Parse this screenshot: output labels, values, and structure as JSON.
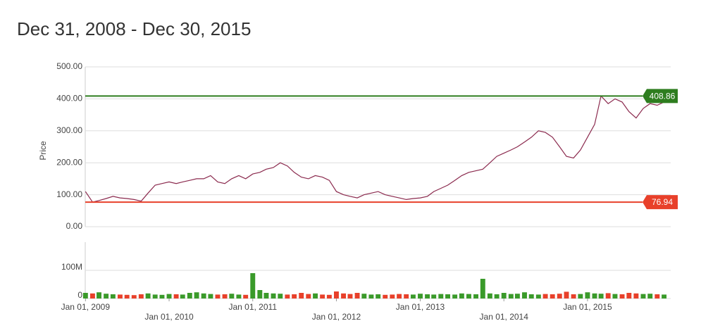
{
  "chart_data": {
    "type": "line",
    "title": "Dec 31, 2008 - Dec 30, 2015",
    "ylabel": "Price",
    "x": [
      "2009-01-01",
      "2009-02-01",
      "2009-03-01",
      "2009-04-01",
      "2009-05-01",
      "2009-06-01",
      "2009-07-01",
      "2009-08-01",
      "2009-09-01",
      "2009-10-01",
      "2009-11-01",
      "2009-12-01",
      "2010-01-01",
      "2010-02-01",
      "2010-03-01",
      "2010-04-01",
      "2010-05-01",
      "2010-06-01",
      "2010-07-01",
      "2010-08-01",
      "2010-09-01",
      "2010-10-01",
      "2010-11-01",
      "2010-12-01",
      "2011-01-01",
      "2011-02-01",
      "2011-03-01",
      "2011-04-01",
      "2011-05-01",
      "2011-06-01",
      "2011-07-01",
      "2011-08-01",
      "2011-09-01",
      "2011-10-01",
      "2011-11-01",
      "2011-12-01",
      "2012-01-01",
      "2012-02-01",
      "2012-03-01",
      "2012-04-01",
      "2012-05-01",
      "2012-06-01",
      "2012-07-01",
      "2012-08-01",
      "2012-09-01",
      "2012-10-01",
      "2012-11-01",
      "2012-12-01",
      "2013-01-01",
      "2013-02-01",
      "2013-03-01",
      "2013-04-01",
      "2013-05-01",
      "2013-06-01",
      "2013-07-01",
      "2013-08-01",
      "2013-09-01",
      "2013-10-01",
      "2013-11-01",
      "2013-12-01",
      "2014-01-01",
      "2014-02-01",
      "2014-03-01",
      "2014-04-01",
      "2014-05-01",
      "2014-06-01",
      "2014-07-01",
      "2014-08-01",
      "2014-09-01",
      "2014-10-01",
      "2014-11-01",
      "2014-12-01",
      "2015-01-01",
      "2015-02-01",
      "2015-03-01",
      "2015-04-01",
      "2015-05-01",
      "2015-06-01",
      "2015-07-01",
      "2015-08-01",
      "2015-09-01",
      "2015-10-01",
      "2015-11-01",
      "2015-12-01"
    ],
    "series": [
      {
        "color": "#8b2a4e",
        "values": [
          110,
          76.94,
          82,
          88,
          95,
          90,
          88,
          85,
          80,
          105,
          130,
          135,
          140,
          135,
          140,
          145,
          150,
          150,
          160,
          140,
          135,
          150,
          160,
          150,
          165,
          170,
          180,
          185,
          200,
          190,
          170,
          155,
          150,
          160,
          155,
          145,
          110,
          100,
          95,
          90,
          100,
          105,
          110,
          100,
          95,
          90,
          85,
          88,
          90,
          95,
          110,
          120,
          130,
          145,
          160,
          170,
          175,
          180,
          200,
          220,
          230,
          240,
          250,
          265,
          280,
          300,
          295,
          280,
          250,
          220,
          215,
          240,
          280,
          320,
          408.86,
          385,
          400,
          390,
          360,
          340,
          370,
          385,
          380,
          390
        ]
      }
    ],
    "xlim": [
      "2008-12-31",
      "2015-12-30"
    ],
    "xticks": [
      {
        "value": "2009-01-01",
        "label": "Jan 01, 2009"
      },
      {
        "value": "2010-01-01",
        "label": "Jan 01, 2010"
      },
      {
        "value": "2011-01-01",
        "label": "Jan 01, 2011"
      },
      {
        "value": "2012-01-01",
        "label": "Jan 01, 2012"
      },
      {
        "value": "2013-01-01",
        "label": "Jan 01, 2013"
      },
      {
        "value": "2014-01-01",
        "label": "Jan 01, 2014"
      },
      {
        "value": "2015-01-01",
        "label": "Jan 01, 2015"
      }
    ],
    "ylim": [
      0,
      500
    ],
    "yticks": [
      {
        "value": 0,
        "label": "0.00"
      },
      {
        "value": 100,
        "label": "100.00"
      },
      {
        "value": 200,
        "label": "200.00"
      },
      {
        "value": 300,
        "label": "300.00"
      },
      {
        "value": 400,
        "label": "400.00"
      },
      {
        "value": 500,
        "label": "500.00"
      }
    ],
    "grid": true,
    "max_line": {
      "value": 408.86,
      "color": "#2e7d1f"
    },
    "min_line": {
      "value": 76.94,
      "color": "#e8402a"
    },
    "volume": {
      "up_color": "#3a9a2a",
      "down_color": "#e8402a",
      "ylim": [
        0,
        200000000
      ],
      "yticks": [
        {
          "value": 0,
          "label": "0"
        },
        {
          "value": 100000000,
          "label": "100M"
        }
      ],
      "values": [
        20000000,
        18000000,
        22000000,
        17000000,
        15000000,
        14000000,
        13000000,
        12000000,
        15000000,
        18000000,
        14000000,
        13000000,
        16000000,
        15000000,
        14000000,
        20000000,
        22000000,
        18000000,
        16000000,
        14000000,
        15000000,
        17000000,
        14000000,
        13000000,
        90000000,
        30000000,
        20000000,
        18000000,
        17000000,
        14000000,
        15000000,
        20000000,
        16000000,
        18000000,
        14000000,
        13000000,
        25000000,
        18000000,
        16000000,
        20000000,
        17000000,
        14000000,
        15000000,
        13000000,
        14000000,
        16000000,
        15000000,
        14000000,
        17000000,
        15000000,
        14000000,
        16000000,
        15000000,
        14000000,
        18000000,
        16000000,
        15000000,
        70000000,
        18000000,
        15000000,
        20000000,
        16000000,
        17000000,
        22000000,
        15000000,
        14000000,
        16000000,
        15000000,
        17000000,
        24000000,
        15000000,
        16000000,
        22000000,
        18000000,
        17000000,
        19000000,
        16000000,
        15000000,
        20000000,
        18000000,
        16000000,
        17000000,
        15000000,
        14000000
      ]
    }
  }
}
